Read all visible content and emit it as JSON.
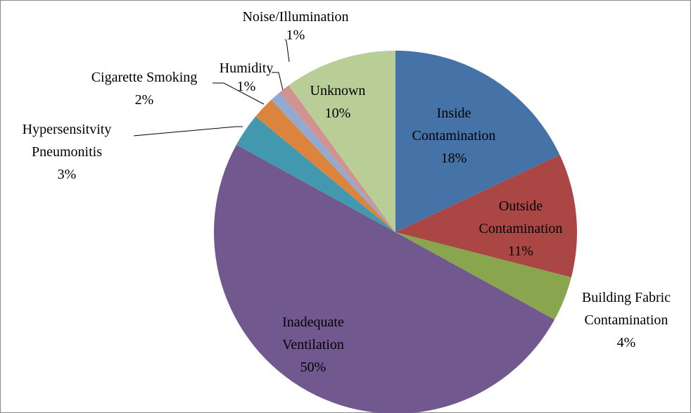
{
  "chart_data": {
    "type": "pie",
    "categories": [
      "Inside Contamination",
      "Outside Contamination",
      "Building Fabric Contamination",
      "Inadequate Ventilation",
      "Hypersensitvity Pneumonitis",
      "Cigarette Smoking",
      "Humidity",
      "Noise/Illumination",
      "Unknown"
    ],
    "values": [
      18,
      11,
      4,
      50,
      3,
      2,
      1,
      1,
      10
    ],
    "value_labels": [
      "18%",
      "11%",
      "4%",
      "50%",
      "3%",
      "2%",
      "1%",
      "1%",
      "10%"
    ],
    "colors": [
      "#4572a7",
      "#aa4643",
      "#89a54e",
      "#71588f",
      "#4198af",
      "#db843d",
      "#93a9cf",
      "#d19392",
      "#b9cd96"
    ]
  }
}
